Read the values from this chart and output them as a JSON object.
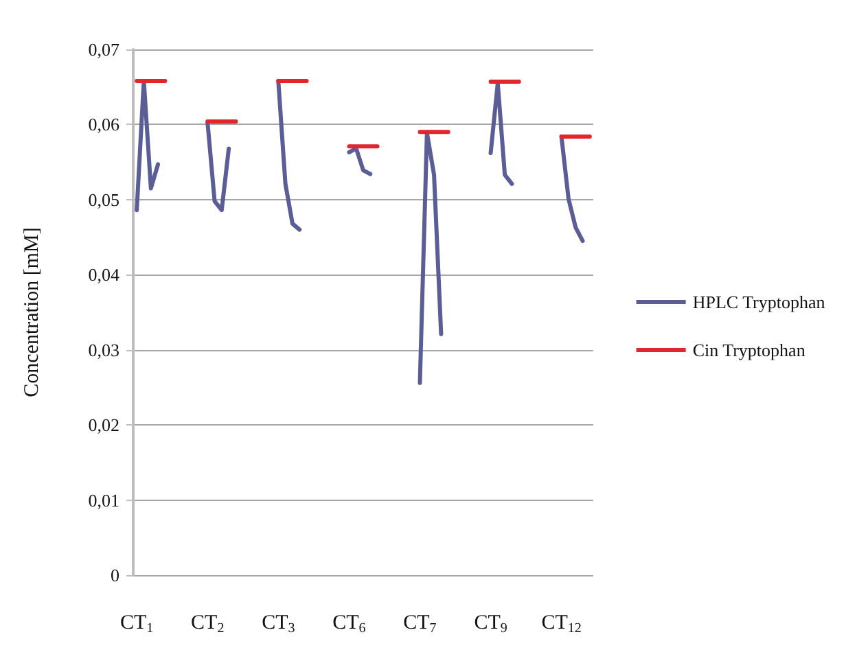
{
  "chart_data": {
    "type": "line",
    "ylabel": "Concentration [mM]",
    "categories": [
      "CT$_{1}$",
      null,
      null,
      null,
      null,
      null,
      null,
      null,
      null,
      null,
      "CT$_{2}$",
      null,
      null,
      null,
      null,
      null,
      null,
      null,
      null,
      null,
      "CT$_{3}$",
      null,
      null,
      null,
      null,
      null,
      null,
      null,
      null,
      null,
      "CT$_{6}$",
      null,
      null,
      null,
      null,
      null,
      null,
      null,
      null,
      null,
      "CT$_{7}$",
      null,
      null,
      null,
      null,
      null,
      null,
      null,
      null,
      null,
      "CT$_{9}$",
      null,
      null,
      null,
      null,
      null,
      null,
      null,
      null,
      null,
      "CT$_{12}$",
      null,
      null,
      null,
      null
    ],
    "series": [
      {
        "name": "HPLC Tryptophan",
        "color": "#5b5e96",
        "values": [
          0.0486,
          0.0658,
          0.0515,
          0.0547,
          null,
          null,
          null,
          null,
          null,
          null,
          0.0603,
          0.0498,
          0.0486,
          0.0568,
          null,
          null,
          null,
          null,
          null,
          null,
          0.0658,
          0.0521,
          0.0468,
          0.046,
          null,
          null,
          null,
          null,
          null,
          null,
          0.0563,
          0.0568,
          0.0539,
          0.0534,
          null,
          null,
          null,
          null,
          null,
          null,
          0.0256,
          0.0589,
          0.0533,
          0.0321,
          null,
          null,
          null,
          null,
          null,
          null,
          0.0562,
          0.0655,
          0.0533,
          0.0521,
          null,
          null,
          null,
          null,
          null,
          null,
          0.0584,
          0.0501,
          0.0463,
          0.0445,
          null
        ]
      },
      {
        "name": "Cin Tryptophan",
        "color": "#e3262e",
        "values": [
          0.0658,
          0.0658,
          0.0658,
          0.0658,
          0.0658,
          null,
          null,
          null,
          null,
          null,
          0.0604,
          0.0604,
          0.0604,
          0.0604,
          0.0604,
          null,
          null,
          null,
          null,
          null,
          0.0658,
          0.0658,
          0.0658,
          0.0658,
          0.0658,
          null,
          null,
          null,
          null,
          null,
          0.0571,
          0.0571,
          0.0571,
          0.0571,
          0.0571,
          null,
          null,
          null,
          null,
          null,
          0.059,
          0.059,
          0.059,
          0.059,
          0.059,
          null,
          null,
          null,
          null,
          null,
          0.0657,
          0.0657,
          0.0657,
          0.0657,
          0.0657,
          null,
          null,
          null,
          null,
          null,
          0.0584,
          0.0584,
          0.0584,
          0.0584,
          0.0584
        ]
      }
    ],
    "ylim": [
      0,
      0.07
    ],
    "yticks": [
      0,
      {
        "value": 0.01,
        "label": "0,01"
      },
      {
        "value": 0.02,
        "label": "0,02"
      },
      {
        "value": 0.03,
        "label": "0,03"
      },
      {
        "value": 0.04,
        "label": "0,04"
      },
      {
        "value": 0.05,
        "label": "0,05"
      },
      {
        "value": 0.06,
        "label": "0,06"
      },
      {
        "value": 0.07,
        "label": "0,07"
      }
    ],
    "grid": "y",
    "legend": "right",
    "marker": "none",
    "line_style": "solid"
  }
}
